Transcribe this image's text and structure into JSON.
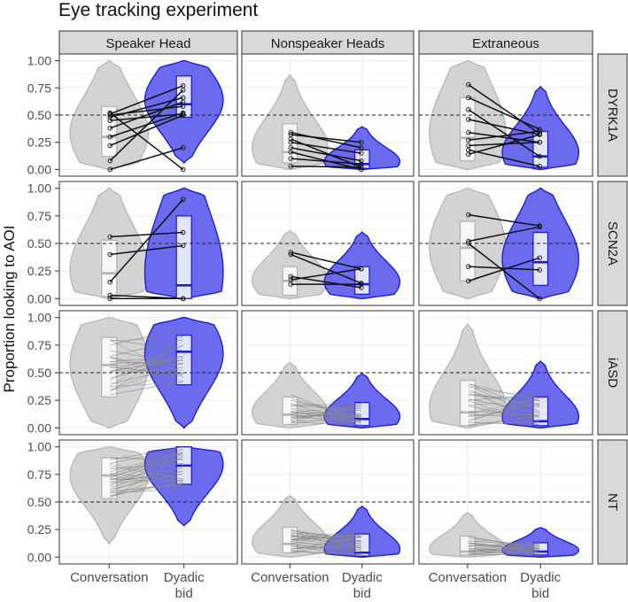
{
  "chart_data": {
    "type": "violin",
    "title": "Eye tracking experiment",
    "ylabel": "Proportion looking to AOI",
    "xlabel": "",
    "ylim": [
      0,
      1
    ],
    "yticks": [
      "0.00",
      "0.25",
      "0.50",
      "0.75",
      "1.00"
    ],
    "reference_line_y": 0.5,
    "columns": [
      "Speaker Head",
      "Nonspeaker Heads",
      "Extraneous"
    ],
    "rows": [
      "DYRK1A",
      "SCN2A",
      "iASD",
      "NT"
    ],
    "conditions": [
      "Conversation",
      "Dyadic bid"
    ],
    "condition_tick_labels": [
      [
        "Conversation"
      ],
      [
        "Dyadic",
        "bid"
      ]
    ],
    "colors": {
      "conversation_fill": "#d3d3d3",
      "conversation_line": "#b3b3b3",
      "dyadic_fill": "#6b6bef",
      "dyadic_line": "#1f1fd0",
      "strip_bg": "#d9d9d9"
    },
    "panels": [
      {
        "row": "DYRK1A",
        "col": "Speaker Head",
        "conversation": {
          "q1": 0.12,
          "median": 0.3,
          "q3": 0.58
        },
        "dyadic": {
          "q1": 0.48,
          "median": 0.6,
          "q3": 0.86
        },
        "pairs": [
          [
            0.0,
            0.2
          ],
          [
            0.08,
            0.73
          ],
          [
            0.22,
            0.5
          ],
          [
            0.3,
            0.52
          ],
          [
            0.38,
            0.62
          ],
          [
            0.45,
            0.51
          ],
          [
            0.48,
            0.66
          ],
          [
            0.5,
            0.58
          ],
          [
            0.51,
            0.77
          ],
          [
            0.52,
            0.0
          ]
        ]
      },
      {
        "row": "DYRK1A",
        "col": "Nonspeaker Heads",
        "conversation": {
          "q1": 0.06,
          "median": 0.16,
          "q3": 0.42
        },
        "dyadic": {
          "q1": 0.01,
          "median": 0.05,
          "q3": 0.18
        },
        "pairs": [
          [
            0.03,
            0.02
          ],
          [
            0.1,
            0.05
          ],
          [
            0.16,
            0.0
          ],
          [
            0.2,
            0.08
          ],
          [
            0.25,
            0.15
          ],
          [
            0.28,
            0.02
          ],
          [
            0.32,
            0.25
          ],
          [
            0.34,
            0.2
          ]
        ]
      },
      {
        "row": "DYRK1A",
        "col": "Extraneous",
        "conversation": {
          "q1": 0.08,
          "median": 0.29,
          "q3": 0.66
        },
        "dyadic": {
          "q1": 0.02,
          "median": 0.12,
          "q3": 0.35
        },
        "pairs": [
          [
            0.14,
            0.32
          ],
          [
            0.18,
            0.03
          ],
          [
            0.22,
            0.25
          ],
          [
            0.27,
            0.35
          ],
          [
            0.34,
            0.25
          ],
          [
            0.46,
            0.32
          ],
          [
            0.55,
            0.12
          ],
          [
            0.66,
            0.37
          ],
          [
            0.78,
            0.33
          ]
        ]
      },
      {
        "row": "SCN2A",
        "col": "Speaker Head",
        "conversation": {
          "q1": 0.02,
          "median": 0.23,
          "q3": 0.53
        },
        "dyadic": {
          "q1": 0.0,
          "median": 0.12,
          "q3": 0.75
        },
        "pairs": [
          [
            0.0,
            0.0
          ],
          [
            0.03,
            0.0
          ],
          [
            0.15,
            0.9
          ],
          [
            0.4,
            0.48
          ],
          [
            0.56,
            0.6
          ]
        ]
      },
      {
        "row": "SCN2A",
        "col": "Nonspeaker Heads",
        "conversation": {
          "q1": 0.03,
          "median": 0.16,
          "q3": 0.29
        },
        "dyadic": {
          "q1": 0.04,
          "median": 0.13,
          "q3": 0.29
        },
        "pairs": [
          [
            0.13,
            0.13
          ],
          [
            0.17,
            0.27
          ],
          [
            0.2,
            0.1
          ],
          [
            0.4,
            0.14
          ],
          [
            0.42,
            0.27
          ]
        ]
      },
      {
        "row": "SCN2A",
        "col": "Extraneous",
        "conversation": {
          "q1": 0.16,
          "median": 0.46,
          "q3": 0.7
        },
        "dyadic": {
          "q1": 0.12,
          "median": 0.33,
          "q3": 0.6
        },
        "pairs": [
          [
            0.16,
            0.37
          ],
          [
            0.29,
            0.26
          ],
          [
            0.5,
            0.0
          ],
          [
            0.52,
            0.65
          ],
          [
            0.76,
            0.66
          ]
        ]
      },
      {
        "row": "iASD",
        "col": "Speaker Head",
        "conversation": {
          "q1": 0.28,
          "median": 0.57,
          "q3": 0.82
        },
        "dyadic": {
          "q1": 0.39,
          "median": 0.69,
          "q3": 0.84
        },
        "pairs": [
          [
            0.3,
            0.42
          ],
          [
            0.4,
            0.55
          ],
          [
            0.5,
            0.75
          ],
          [
            0.6,
            0.65
          ],
          [
            0.65,
            0.8
          ],
          [
            0.7,
            0.58
          ],
          [
            0.75,
            0.9
          ],
          [
            0.8,
            0.7
          ],
          [
            0.55,
            0.48
          ],
          [
            0.45,
            0.62
          ]
        ]
      },
      {
        "row": "iASD",
        "col": "Nonspeaker Heads",
        "conversation": {
          "q1": 0.03,
          "median": 0.12,
          "q3": 0.28
        },
        "dyadic": {
          "q1": 0.02,
          "median": 0.08,
          "q3": 0.23
        },
        "pairs": [
          [
            0.05,
            0.03
          ],
          [
            0.1,
            0.12
          ],
          [
            0.15,
            0.06
          ],
          [
            0.2,
            0.22
          ],
          [
            0.25,
            0.1
          ],
          [
            0.08,
            0.18
          ],
          [
            0.3,
            0.05
          ],
          [
            0.12,
            0.02
          ]
        ]
      },
      {
        "row": "iASD",
        "col": "Extraneous",
        "conversation": {
          "q1": 0.02,
          "median": 0.14,
          "q3": 0.43
        },
        "dyadic": {
          "q1": 0.02,
          "median": 0.06,
          "q3": 0.28
        },
        "pairs": [
          [
            0.05,
            0.03
          ],
          [
            0.12,
            0.1
          ],
          [
            0.2,
            0.06
          ],
          [
            0.3,
            0.25
          ],
          [
            0.4,
            0.15
          ],
          [
            0.1,
            0.2
          ],
          [
            0.35,
            0.02
          ],
          [
            0.25,
            0.3
          ]
        ]
      },
      {
        "row": "NT",
        "col": "Speaker Head",
        "conversation": {
          "q1": 0.53,
          "median": 0.74,
          "q3": 0.9
        },
        "dyadic": {
          "q1": 0.66,
          "median": 0.83,
          "q3": 1.0
        },
        "pairs": [
          [
            0.55,
            0.7
          ],
          [
            0.6,
            0.82
          ],
          [
            0.65,
            0.9
          ],
          [
            0.7,
            0.75
          ],
          [
            0.75,
            0.95
          ],
          [
            0.8,
            0.85
          ],
          [
            0.85,
            0.98
          ],
          [
            0.9,
            0.88
          ],
          [
            0.58,
            0.62
          ],
          [
            0.72,
            0.93
          ],
          [
            0.68,
            0.78
          ],
          [
            0.88,
            1.0
          ]
        ]
      },
      {
        "row": "NT",
        "col": "Nonspeaker Heads",
        "conversation": {
          "q1": 0.04,
          "median": 0.12,
          "q3": 0.27
        },
        "dyadic": {
          "q1": 0.01,
          "median": 0.04,
          "q3": 0.21
        },
        "pairs": [
          [
            0.05,
            0.02
          ],
          [
            0.08,
            0.1
          ],
          [
            0.12,
            0.04
          ],
          [
            0.16,
            0.18
          ],
          [
            0.2,
            0.08
          ],
          [
            0.24,
            0.14
          ],
          [
            0.1,
            0.01
          ],
          [
            0.18,
            0.22
          ],
          [
            0.14,
            0.06
          ],
          [
            0.22,
            0.12
          ]
        ]
      },
      {
        "row": "NT",
        "col": "Extraneous",
        "conversation": {
          "q1": 0.02,
          "median": 0.05,
          "q3": 0.19
        },
        "dyadic": {
          "q1": 0.02,
          "median": 0.05,
          "q3": 0.13
        },
        "pairs": [
          [
            0.02,
            0.03
          ],
          [
            0.05,
            0.08
          ],
          [
            0.08,
            0.04
          ],
          [
            0.1,
            0.12
          ],
          [
            0.12,
            0.06
          ],
          [
            0.06,
            0.02
          ],
          [
            0.15,
            0.1
          ],
          [
            0.04,
            0.05
          ]
        ]
      }
    ]
  }
}
